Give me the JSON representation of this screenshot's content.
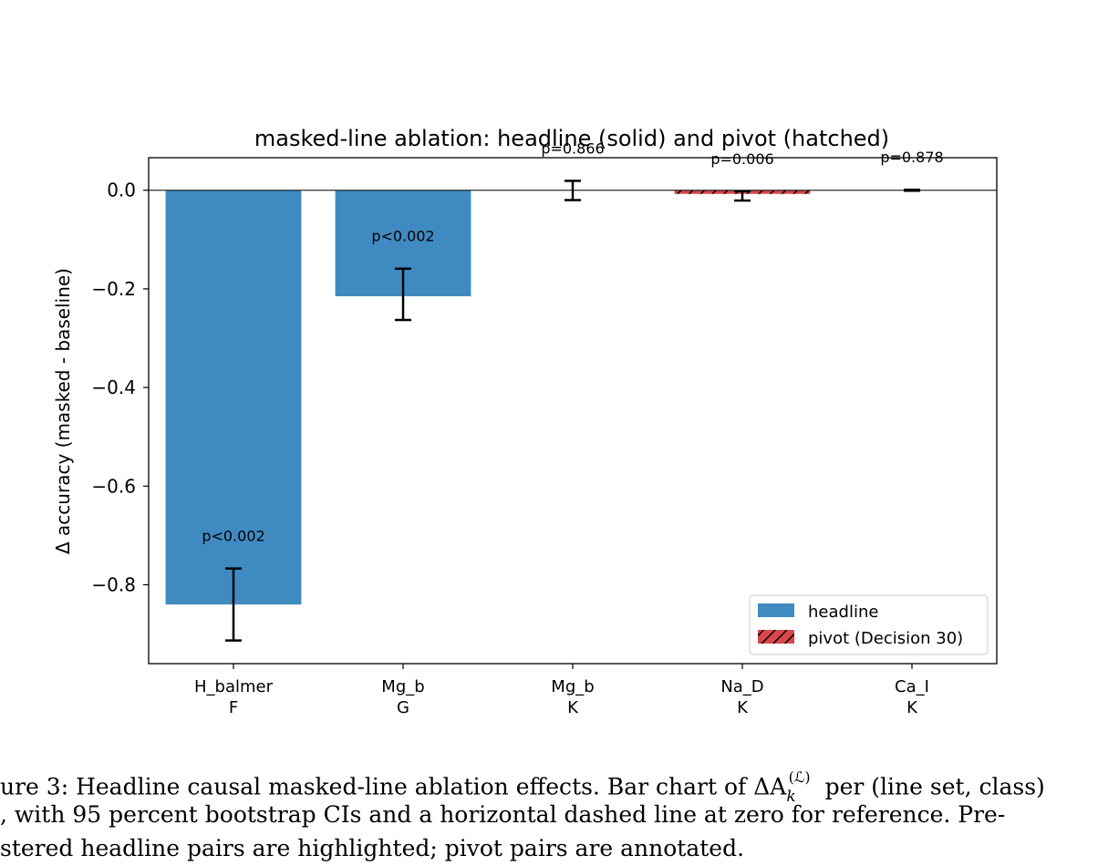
{
  "chart_data": {
    "type": "bar",
    "title": "masked-line ablation: headline (solid) and pivot (hatched)",
    "ylabel": "Δ accuracy (masked - baseline)",
    "xlabel": "",
    "ylim": [
      -0.96,
      0.066
    ],
    "yticks": [
      0.0,
      -0.2,
      -0.4,
      -0.6,
      -0.8
    ],
    "ytick_labels": [
      "0.0",
      "−0.2",
      "−0.4",
      "−0.6",
      "−0.8"
    ],
    "categories": [
      {
        "line": "H_balmer",
        "cls": "F"
      },
      {
        "line": "Mg_b",
        "cls": "G"
      },
      {
        "line": "Mg_b",
        "cls": "K"
      },
      {
        "line": "Na_D",
        "cls": "K"
      },
      {
        "line": "Ca_I",
        "cls": "K"
      }
    ],
    "bars": [
      {
        "value": -0.84,
        "ci_low": -0.913,
        "ci_high": -0.767,
        "kind": "headline",
        "annotation": "p<0.002"
      },
      {
        "value": -0.215,
        "ci_low": -0.263,
        "ci_high": -0.159,
        "kind": "headline",
        "annotation": "p<0.002"
      },
      {
        "value": 0.0,
        "ci_low": -0.02,
        "ci_high": 0.019,
        "kind": "none",
        "annotation": "p=0.866"
      },
      {
        "value": -0.007,
        "ci_low": -0.021,
        "ci_high": -0.002,
        "kind": "pivot",
        "annotation": "p=0.006"
      },
      {
        "value": 0.0,
        "ci_low": -0.001,
        "ci_high": 0.001,
        "kind": "none",
        "annotation": "p=0.878"
      }
    ],
    "legend": {
      "placement": "lower-right",
      "entries": [
        {
          "label": "headline",
          "kind": "headline"
        },
        {
          "label": "pivot (Decision 30)",
          "kind": "pivot"
        }
      ]
    },
    "colors": {
      "headline": "#3f8bc1",
      "pivot": "#d9474b",
      "hatch": "#000000",
      "errorbar": "#000000"
    }
  },
  "caption": {
    "lines": [
      "ure 3: Headline causal masked-line ablation effects. Bar chart of ΔA",
      ", with 95 percent bootstrap CIs and a horizontal dashed line at zero for reference. Pre-",
      "stered headline pairs are highlighted; pivot pairs are annotated."
    ],
    "superscript": "(ℒ)",
    "subscript": "k",
    "line1_tail": "per (line set, class)"
  }
}
